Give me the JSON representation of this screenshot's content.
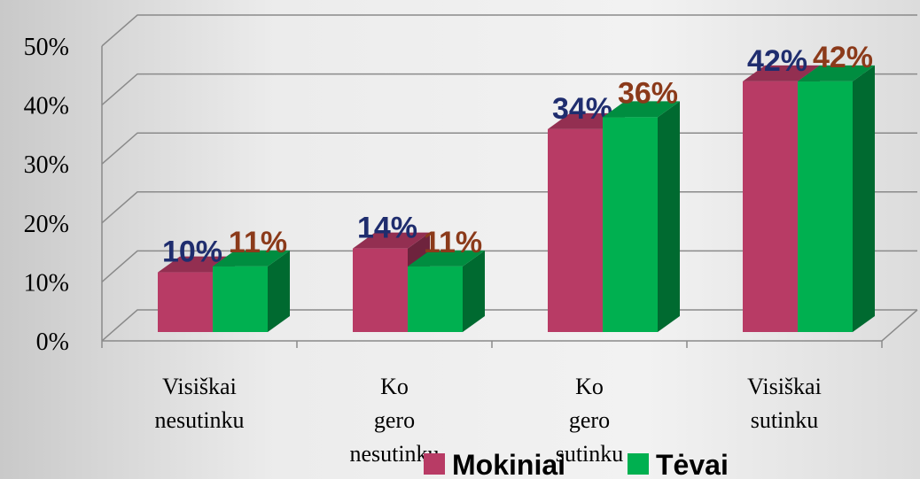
{
  "chart_data": {
    "type": "bar3d",
    "categories": [
      "Visiškai nesutinku",
      "Ko gero nesutinku",
      "Ko gero sutinku",
      "Visiškai sutinku"
    ],
    "series": [
      {
        "name": "Mokiniai",
        "color": "#b83b65",
        "label_color": "#1f2d6e",
        "values": [
          10,
          14,
          34,
          42
        ],
        "value_labels": [
          "10%",
          "14%",
          "34%",
          "42%"
        ]
      },
      {
        "name": "Tėvai",
        "color": "#00b050",
        "label_color": "#8b3a1a",
        "values": [
          11,
          11,
          36,
          42
        ],
        "value_labels": [
          "11%",
          "11%",
          "36%",
          "42%"
        ]
      }
    ],
    "ylim": [
      0,
      50
    ],
    "yticks": [
      {
        "value": 0,
        "label": "0%"
      },
      {
        "value": 10,
        "label": "10%"
      },
      {
        "value": 20,
        "label": "20%"
      },
      {
        "value": 30,
        "label": "30%"
      },
      {
        "value": 40,
        "label": "40%"
      },
      {
        "value": 50,
        "label": "50%"
      }
    ],
    "grid": true
  }
}
